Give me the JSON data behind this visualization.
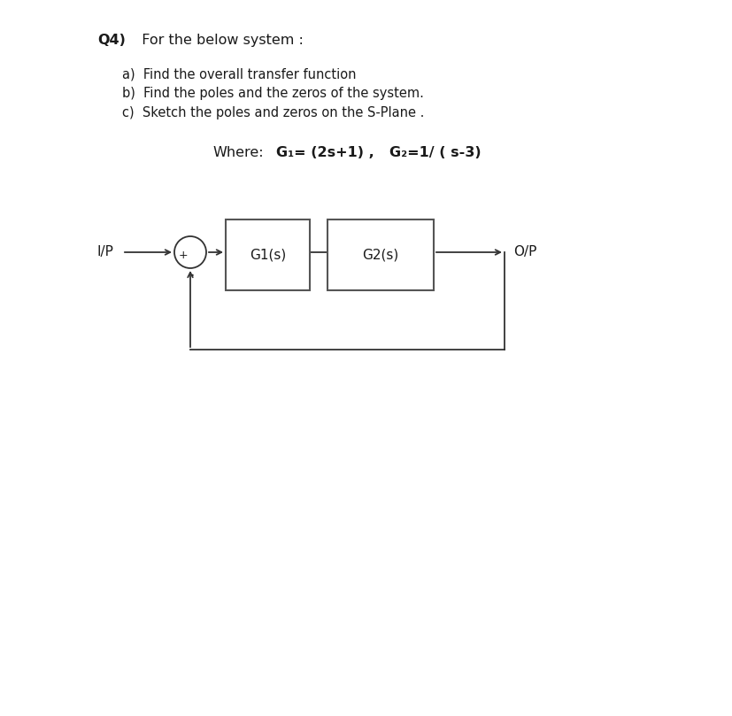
{
  "title_bold": "Q4)",
  "title_rest": "  For the below system :",
  "items": [
    "a)  Find the overall transfer function",
    "b)  Find the poles and the zeros of the system.",
    "c)  Sketch the poles and zeros on the S-Plane ."
  ],
  "where_label": "Where:",
  "g1_label": "G₁= (2s+1) ,",
  "g2_label": "G₂=1/ ( s-3)",
  "block1_label": "G1(s)",
  "block2_label": "G2(s)",
  "input_label": "I/P",
  "output_label": "O/P",
  "summing_plus": "+",
  "summing_dot": "•",
  "bg_color": "#ffffff",
  "text_color": "#1a1a1a",
  "box_edge_color": "#555555",
  "line_color": "#333333",
  "font_family": "DejaVu Sans",
  "title_fontsize": 11.5,
  "item_fontsize": 10.5,
  "where_fontsize": 11.5,
  "diagram_fontsize": 11
}
